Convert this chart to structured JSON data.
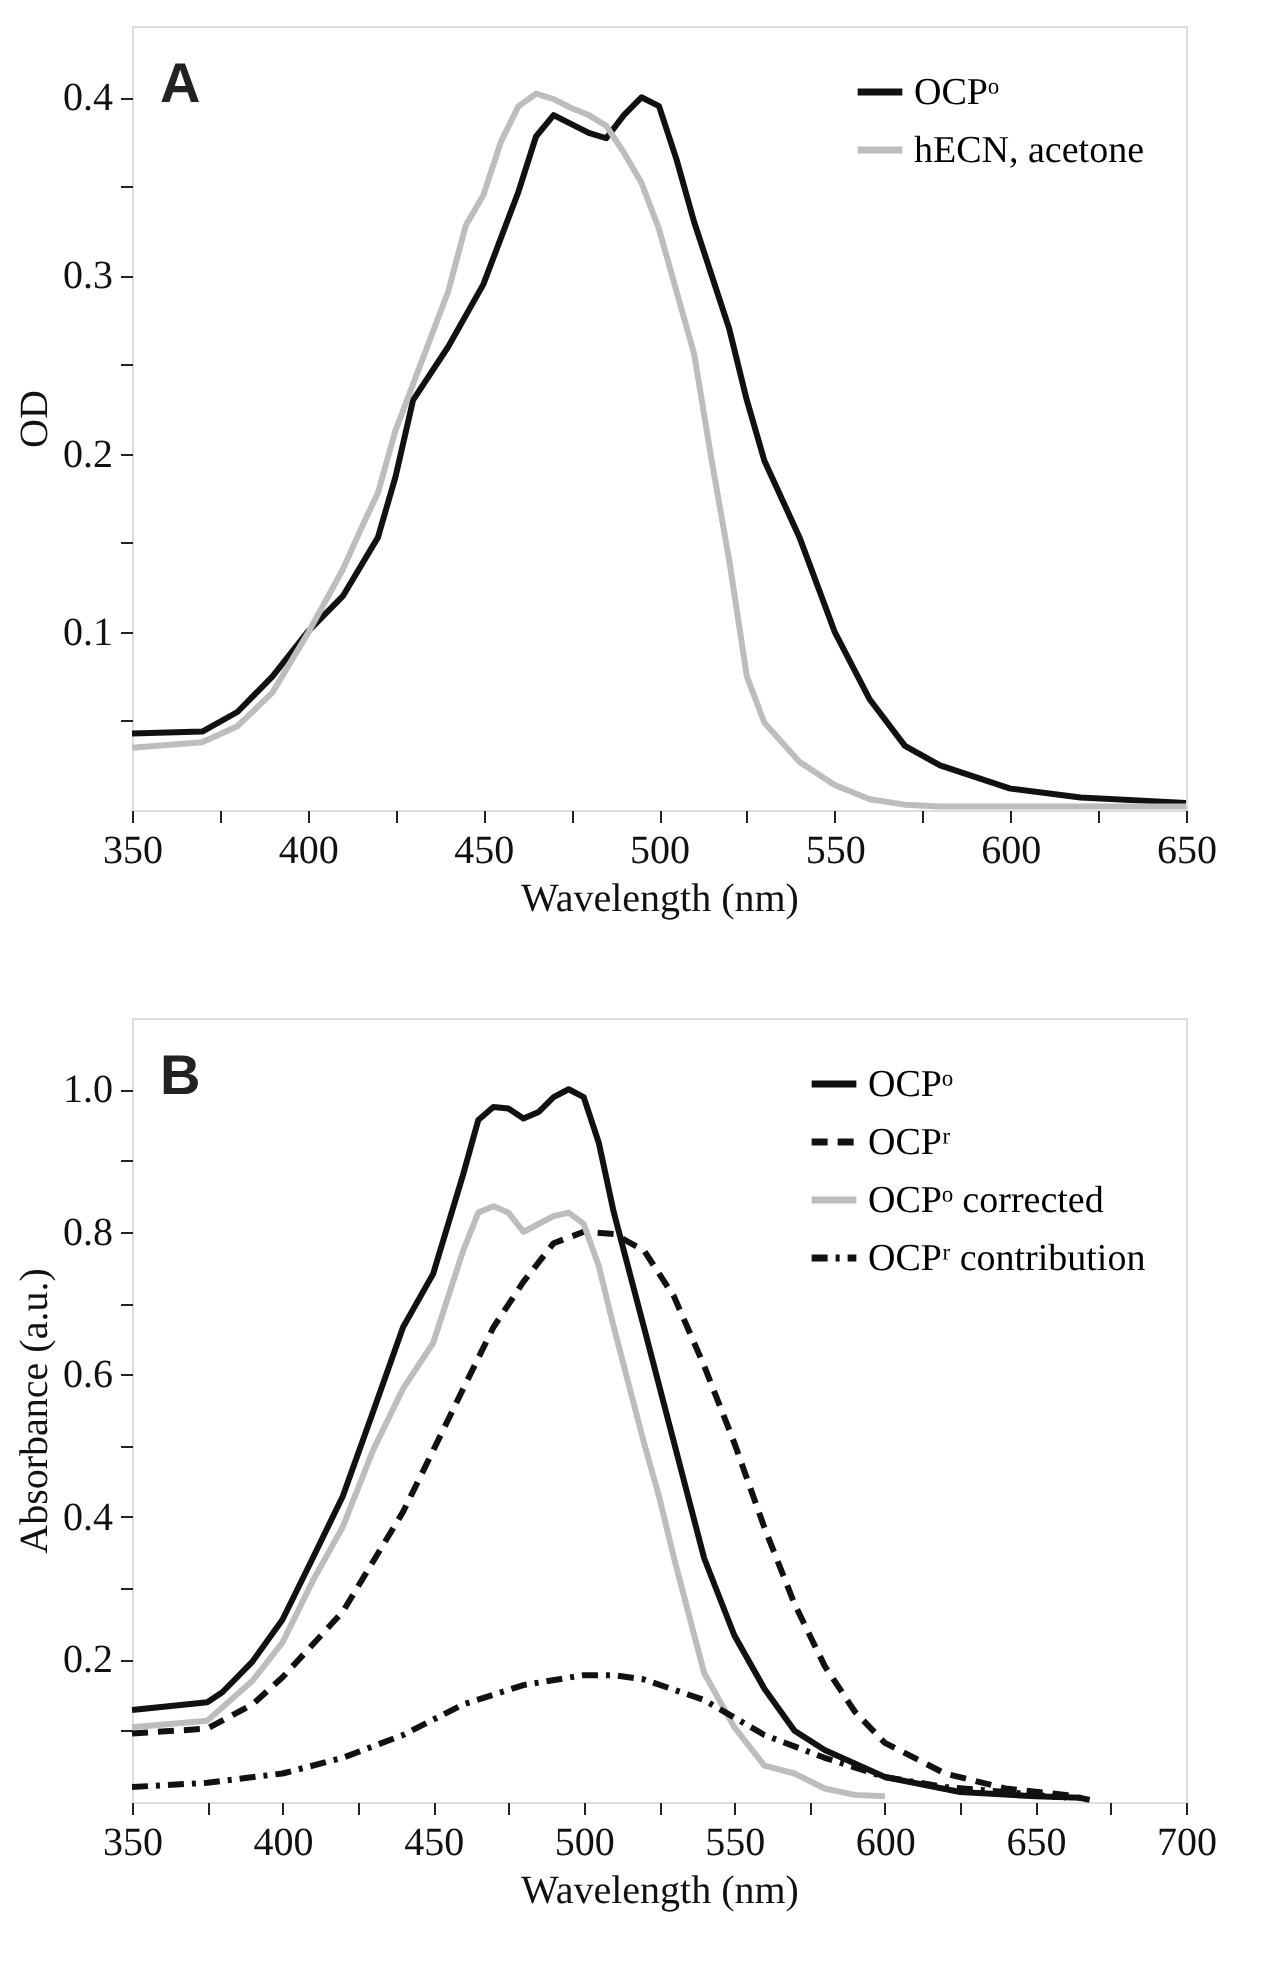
{
  "chart_data": [
    {
      "type": "line",
      "title": "A",
      "xlabel": "Wavelength (nm)",
      "ylabel": "OD",
      "xlim": [
        350,
        650
      ],
      "ylim": [
        0,
        0.44
      ],
      "xticks": [
        350,
        {
          "value": 375,
          "label": null
        },
        400,
        {
          "value": 425,
          "label": null
        },
        450,
        {
          "value": 475,
          "label": null
        },
        500,
        {
          "value": 525,
          "label": null
        },
        550,
        {
          "value": 575,
          "label": null
        },
        600,
        {
          "value": 625,
          "label": null
        },
        650
      ],
      "yticks": [
        {
          "value": 0.05,
          "label": null
        },
        0.1,
        {
          "value": 0.15,
          "label": null
        },
        0.2,
        {
          "value": 0.25,
          "label": null
        },
        0.3,
        {
          "value": 0.35,
          "label": null
        },
        0.4
      ],
      "grid": false,
      "legend": "top right",
      "marker": "none",
      "series": [
        {
          "name": "OCPᵒ",
          "color": "#111111",
          "line_style": "solid",
          "x": [
            350,
            370,
            380,
            390,
            400,
            410,
            420,
            425,
            430,
            440,
            450,
            460,
            465,
            470,
            480,
            485,
            490,
            495,
            500,
            505,
            510,
            515,
            520,
            525,
            530,
            540,
            550,
            560,
            570,
            580,
            600,
            620,
            650
          ],
          "values": [
            0.043,
            0.044,
            0.055,
            0.075,
            0.1,
            0.12,
            0.153,
            0.187,
            0.23,
            0.26,
            0.295,
            0.347,
            0.378,
            0.39,
            0.38,
            0.377,
            0.39,
            0.4,
            0.395,
            0.365,
            0.33,
            0.3,
            0.27,
            0.23,
            0.196,
            0.153,
            0.1,
            0.062,
            0.036,
            0.025,
            0.012,
            0.007,
            0.004
          ]
        },
        {
          "name": "hECN, acetone",
          "color": "#bdbdbd",
          "line_style": "solid",
          "x": [
            350,
            370,
            380,
            390,
            400,
            410,
            415,
            420,
            425,
            430,
            440,
            445,
            450,
            455,
            460,
            465,
            470,
            475,
            480,
            485,
            490,
            495,
            500,
            505,
            510,
            515,
            520,
            525,
            530,
            540,
            550,
            560,
            570,
            580,
            650
          ],
          "values": [
            0.035,
            0.038,
            0.047,
            0.066,
            0.099,
            0.135,
            0.157,
            0.178,
            0.213,
            0.239,
            0.291,
            0.328,
            0.345,
            0.375,
            0.395,
            0.402,
            0.399,
            0.394,
            0.39,
            0.384,
            0.369,
            0.352,
            0.326,
            0.291,
            0.256,
            0.196,
            0.14,
            0.075,
            0.049,
            0.027,
            0.014,
            0.006,
            0.003,
            0.002,
            0.002
          ]
        }
      ]
    },
    {
      "type": "line",
      "title": "B",
      "xlabel": "Wavelength (nm)",
      "ylabel": "Absorbance (a.u.)",
      "xlim": [
        350,
        700
      ],
      "ylim": [
        0,
        1.1
      ],
      "xticks": [
        350,
        {
          "value": 375,
          "label": null
        },
        400,
        {
          "value": 425,
          "label": null
        },
        450,
        {
          "value": 475,
          "label": null
        },
        500,
        {
          "value": 525,
          "label": null
        },
        550,
        {
          "value": 575,
          "label": null
        },
        600,
        {
          "value": 625,
          "label": null
        },
        650,
        {
          "value": 675,
          "label": null
        },
        700
      ],
      "yticks": [
        {
          "value": 0.1,
          "label": null
        },
        0.2,
        {
          "value": 0.3,
          "label": null
        },
        0.4,
        {
          "value": 0.5,
          "label": null
        },
        0.6,
        {
          "value": 0.7,
          "label": null
        },
        0.8,
        {
          "value": 0.9,
          "label": null
        },
        {
          "value": 1,
          "label": "1.0"
        }
      ],
      "grid": false,
      "legend": "top right",
      "marker": "none",
      "series": [
        {
          "name": "OCPᵒ",
          "color": "#111111",
          "line_style": "solid",
          "x": [
            350,
            375,
            380,
            390,
            400,
            410,
            420,
            430,
            440,
            450,
            460,
            465,
            470,
            475,
            480,
            485,
            490,
            495,
            500,
            505,
            510,
            520,
            530,
            540,
            550,
            560,
            570,
            580,
            600,
            625,
            650,
            665
          ],
          "values": [
            0.129,
            0.14,
            0.154,
            0.197,
            0.256,
            0.342,
            0.429,
            0.547,
            0.666,
            0.741,
            0.881,
            0.957,
            0.975,
            0.973,
            0.959,
            0.968,
            0.989,
            1.0,
            0.989,
            0.925,
            0.827,
            0.666,
            0.504,
            0.342,
            0.234,
            0.159,
            0.1,
            0.073,
            0.035,
            0.014,
            0.008,
            0.006
          ]
        },
        {
          "name": "OCPʳ",
          "color": "#111111",
          "line_style": "dashed",
          "x": [
            350,
            375,
            390,
            400,
            420,
            440,
            450,
            460,
            470,
            480,
            490,
            500,
            510,
            520,
            530,
            540,
            550,
            560,
            570,
            580,
            590,
            600,
            620,
            640,
            660,
            668
          ],
          "values": [
            0.096,
            0.103,
            0.137,
            0.175,
            0.267,
            0.407,
            0.493,
            0.58,
            0.666,
            0.73,
            0.784,
            0.8,
            0.797,
            0.774,
            0.709,
            0.612,
            0.504,
            0.385,
            0.278,
            0.191,
            0.127,
            0.083,
            0.04,
            0.019,
            0.01,
            0.003
          ]
        },
        {
          "name": "OCPᵒ corrected",
          "color": "#bdbdbd",
          "line_style": "solid",
          "x": [
            350,
            375,
            390,
            400,
            410,
            420,
            430,
            440,
            450,
            460,
            465,
            470,
            475,
            480,
            485,
            490,
            495,
            500,
            505,
            510,
            520,
            525,
            530,
            540,
            550,
            560,
            570,
            580,
            590,
            600
          ],
          "values": [
            0.105,
            0.114,
            0.17,
            0.224,
            0.31,
            0.386,
            0.493,
            0.58,
            0.644,
            0.774,
            0.827,
            0.836,
            0.827,
            0.8,
            0.811,
            0.822,
            0.827,
            0.811,
            0.752,
            0.666,
            0.504,
            0.429,
            0.342,
            0.181,
            0.105,
            0.051,
            0.04,
            0.019,
            0.01,
            0.008
          ]
        },
        {
          "name": "OCPʳ contribution",
          "color": "#111111",
          "line_style": "dashdot",
          "x": [
            350,
            375,
            400,
            420,
            440,
            460,
            480,
            500,
            510,
            520,
            540,
            560,
            580,
            600,
            620,
            640,
            660
          ],
          "values": [
            0.021,
            0.027,
            0.04,
            0.062,
            0.094,
            0.137,
            0.164,
            0.178,
            0.178,
            0.172,
            0.143,
            0.094,
            0.062,
            0.035,
            0.021,
            0.014,
            0.006
          ]
        }
      ]
    }
  ]
}
